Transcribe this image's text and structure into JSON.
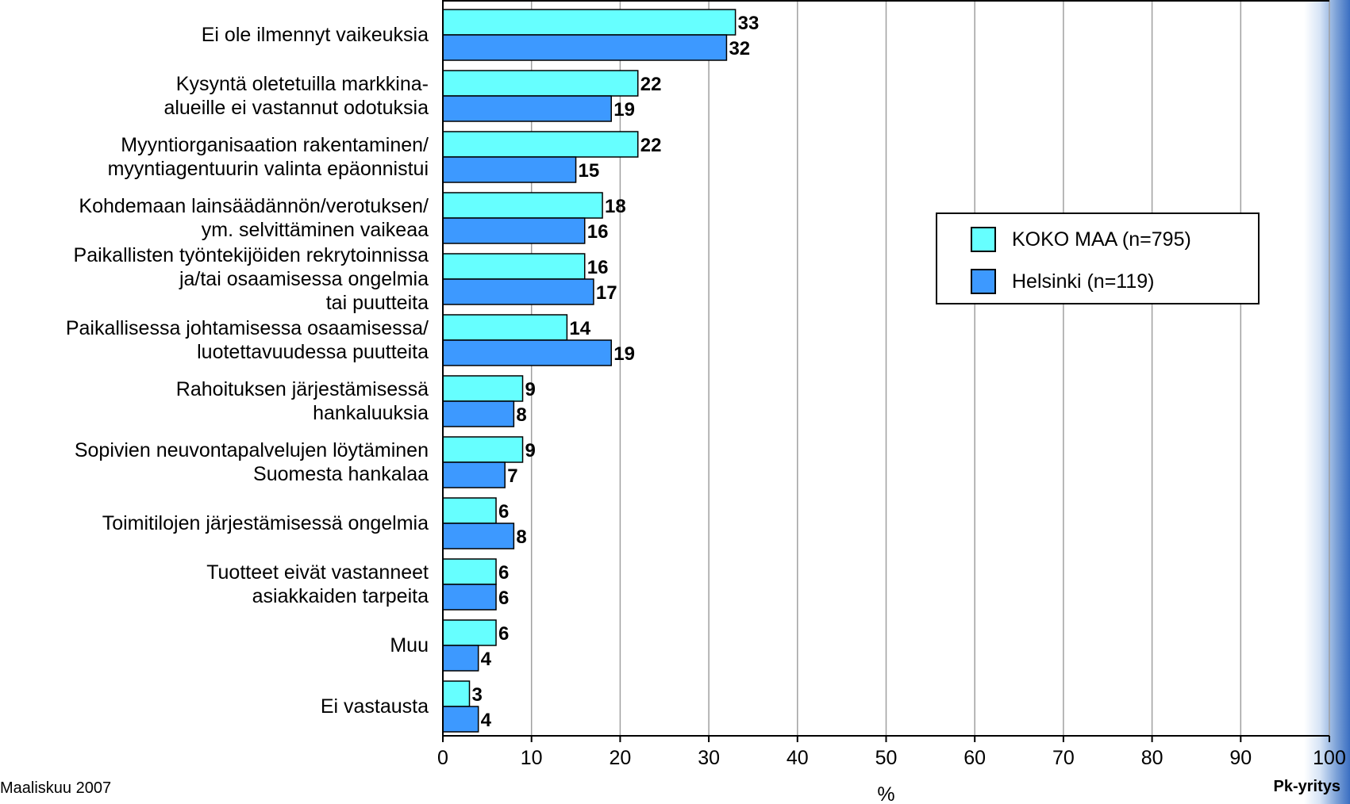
{
  "footer": {
    "date": "Maaliskuu 2007",
    "brand": "Pk-yritys"
  },
  "colors": {
    "series1": "#66ffff",
    "series2": "#3d99ff",
    "grid": "#a0a0a0",
    "axis": "#000000"
  },
  "chart_data": {
    "type": "bar",
    "orientation": "horizontal",
    "xlabel": "%",
    "xlim": [
      0,
      100
    ],
    "xticks": [
      0,
      10,
      20,
      30,
      40,
      50,
      60,
      70,
      80,
      90,
      100
    ],
    "grid": true,
    "legend_position": "right",
    "categories": [
      [
        "Ei ole ilmennyt vaikeuksia"
      ],
      [
        "Kysyntä oletetuilla markkina-",
        "alueille ei vastannut odotuksia"
      ],
      [
        "Myyntiorganisaation rakentaminen/",
        "myyntiagentuurin valinta epäonnistui"
      ],
      [
        "Kohdemaan lainsäädännön/verotuksen/",
        "ym. selvittäminen vaikeaa"
      ],
      [
        "Paikallisten työntekijöiden rekrytoinnissa",
        "ja/tai osaamisessa ongelmia",
        "tai puutteita"
      ],
      [
        "Paikallisessa johtamisessa osaamisessa/",
        "luotettavuudessa puutteita"
      ],
      [
        "Rahoituksen järjestämisessä",
        "hankaluuksia"
      ],
      [
        "Sopivien neuvontapalvelujen löytäminen",
        "Suomesta hankalaa"
      ],
      [
        "Toimitilojen järjestämisessä ongelmia"
      ],
      [
        "Tuotteet eivät vastanneet",
        "asiakkaiden tarpeita"
      ],
      [
        "Muu"
      ],
      [
        "Ei vastausta"
      ]
    ],
    "series": [
      {
        "name": "KOKO MAA (n=795)",
        "values": [
          33,
          22,
          22,
          18,
          16,
          14,
          9,
          9,
          6,
          6,
          6,
          3
        ]
      },
      {
        "name": "Helsinki (n=119)",
        "values": [
          32,
          19,
          15,
          16,
          17,
          19,
          8,
          7,
          8,
          6,
          4,
          4
        ]
      }
    ]
  }
}
